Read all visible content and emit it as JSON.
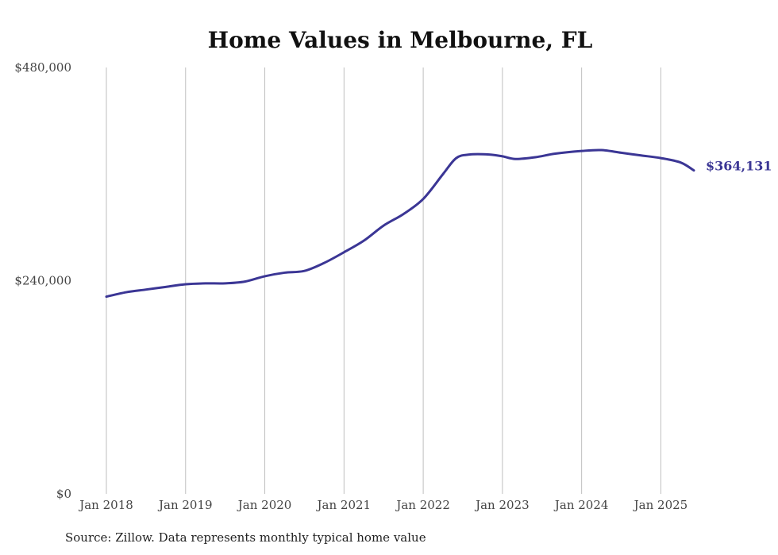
{
  "chart_data": {
    "type": "line",
    "title": "Home Values in Melbourne, FL",
    "xlabel": "",
    "ylabel": "",
    "ylim": [
      0,
      480000
    ],
    "xlim": [
      "2018-01",
      "2025-06"
    ],
    "grid": {
      "vertical": true,
      "horizontal": false
    },
    "yticks": [
      {
        "value": 480000,
        "label": "$480,000"
      },
      {
        "value": 240000,
        "label": "$240,000"
      },
      {
        "value": 0,
        "label": "$0"
      }
    ],
    "xticks": [
      {
        "value": "2018-01",
        "label": "Jan 2018"
      },
      {
        "value": "2019-01",
        "label": "Jan 2019"
      },
      {
        "value": "2020-01",
        "label": "Jan 2020"
      },
      {
        "value": "2021-01",
        "label": "Jan 2021"
      },
      {
        "value": "2022-01",
        "label": "Jan 2022"
      },
      {
        "value": "2023-01",
        "label": "Jan 2023"
      },
      {
        "value": "2024-01",
        "label": "Jan 2024"
      },
      {
        "value": "2025-01",
        "label": "Jan 2025"
      }
    ],
    "series": [
      {
        "color": "#3b3695",
        "points": [
          [
            "2018-01",
            222000
          ],
          [
            "2018-04",
            227000
          ],
          [
            "2018-07",
            230000
          ],
          [
            "2018-10",
            233000
          ],
          [
            "2019-01",
            236000
          ],
          [
            "2019-04",
            237000
          ],
          [
            "2019-07",
            237000
          ],
          [
            "2019-10",
            239000
          ],
          [
            "2020-01",
            245000
          ],
          [
            "2020-04",
            249000
          ],
          [
            "2020-07",
            251000
          ],
          [
            "2020-10",
            260000
          ],
          [
            "2021-01",
            272000
          ],
          [
            "2021-04",
            285000
          ],
          [
            "2021-07",
            302000
          ],
          [
            "2021-10",
            315000
          ],
          [
            "2022-01",
            332000
          ],
          [
            "2022-04",
            360000
          ],
          [
            "2022-06",
            378000
          ],
          [
            "2022-08",
            382000
          ],
          [
            "2022-11",
            382000
          ],
          [
            "2023-01",
            380000
          ],
          [
            "2023-03",
            377000
          ],
          [
            "2023-06",
            379000
          ],
          [
            "2023-09",
            383000
          ],
          [
            "2024-01",
            386000
          ],
          [
            "2024-04",
            387000
          ],
          [
            "2024-07",
            384000
          ],
          [
            "2024-10",
            381000
          ],
          [
            "2025-01",
            378000
          ],
          [
            "2025-04",
            373000
          ],
          [
            "2025-06",
            364131
          ]
        ]
      }
    ],
    "end_label": "$364,131",
    "source": "Source: Zillow. Data represents monthly typical home value"
  }
}
